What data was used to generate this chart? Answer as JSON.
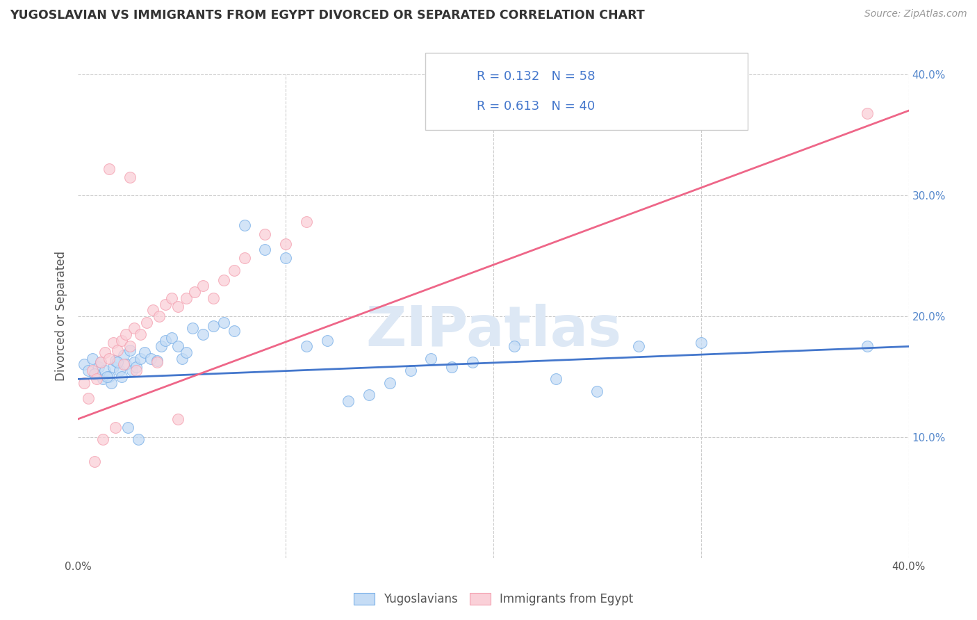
{
  "title": "YUGOSLAVIAN VS IMMIGRANTS FROM EGYPT DIVORCED OR SEPARATED CORRELATION CHART",
  "source": "Source: ZipAtlas.com",
  "ylabel": "Divorced or Separated",
  "xlim": [
    0.0,
    0.4
  ],
  "ylim": [
    0.0,
    0.4
  ],
  "grid_color": "#cccccc",
  "background_color": "#ffffff",
  "watermark_text": "ZIPatlas",
  "blue_color": "#7ab0e8",
  "pink_color": "#f4a0b0",
  "blue_fill": "#c5dcf5",
  "pink_fill": "#fad0d8",
  "blue_line_color": "#4477cc",
  "pink_line_color": "#ee6688",
  "R_blue": 0.132,
  "N_blue": 58,
  "R_pink": 0.613,
  "N_pink": 40,
  "legend_label_blue": "Yugoslavians",
  "legend_label_pink": "Immigrants from Egypt",
  "blue_scatter_x": [
    0.003,
    0.005,
    0.007,
    0.008,
    0.01,
    0.011,
    0.012,
    0.013,
    0.015,
    0.016,
    0.017,
    0.018,
    0.02,
    0.021,
    0.022,
    0.023,
    0.025,
    0.026,
    0.027,
    0.028,
    0.03,
    0.032,
    0.035,
    0.038,
    0.04,
    0.042,
    0.045,
    0.048,
    0.05,
    0.052,
    0.055,
    0.06,
    0.065,
    0.07,
    0.075,
    0.08,
    0.09,
    0.1,
    0.11,
    0.12,
    0.13,
    0.14,
    0.15,
    0.16,
    0.17,
    0.18,
    0.19,
    0.21,
    0.23,
    0.25,
    0.27,
    0.3,
    0.008,
    0.014,
    0.019,
    0.024,
    0.029,
    0.38
  ],
  "blue_scatter_y": [
    0.16,
    0.155,
    0.165,
    0.152,
    0.158,
    0.162,
    0.148,
    0.155,
    0.15,
    0.145,
    0.158,
    0.163,
    0.155,
    0.15,
    0.168,
    0.16,
    0.172,
    0.155,
    0.162,
    0.158,
    0.165,
    0.17,
    0.165,
    0.163,
    0.175,
    0.18,
    0.182,
    0.175,
    0.165,
    0.17,
    0.19,
    0.185,
    0.192,
    0.195,
    0.188,
    0.275,
    0.255,
    0.248,
    0.175,
    0.18,
    0.13,
    0.135,
    0.145,
    0.155,
    0.165,
    0.158,
    0.162,
    0.175,
    0.148,
    0.138,
    0.175,
    0.178,
    0.152,
    0.15,
    0.162,
    0.108,
    0.098,
    0.175
  ],
  "pink_scatter_x": [
    0.003,
    0.005,
    0.007,
    0.009,
    0.011,
    0.013,
    0.015,
    0.017,
    0.019,
    0.021,
    0.023,
    0.025,
    0.027,
    0.03,
    0.033,
    0.036,
    0.039,
    0.042,
    0.045,
    0.048,
    0.052,
    0.056,
    0.06,
    0.065,
    0.07,
    0.075,
    0.08,
    0.09,
    0.1,
    0.11,
    0.012,
    0.018,
    0.022,
    0.028,
    0.038,
    0.048,
    0.008,
    0.015,
    0.025,
    0.38
  ],
  "pink_scatter_y": [
    0.145,
    0.132,
    0.155,
    0.148,
    0.162,
    0.17,
    0.165,
    0.178,
    0.172,
    0.18,
    0.185,
    0.175,
    0.19,
    0.185,
    0.195,
    0.205,
    0.2,
    0.21,
    0.215,
    0.208,
    0.215,
    0.22,
    0.225,
    0.215,
    0.23,
    0.238,
    0.248,
    0.268,
    0.26,
    0.278,
    0.098,
    0.108,
    0.16,
    0.155,
    0.162,
    0.115,
    0.08,
    0.322,
    0.315,
    0.368
  ]
}
